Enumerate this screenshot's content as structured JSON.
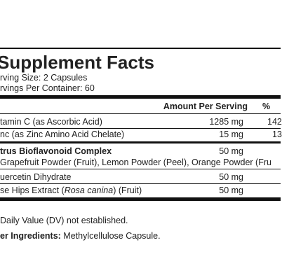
{
  "label": {
    "title": "Supplement Facts",
    "serving_size": "rving Size: 2 Capsules",
    "servings_per_container": "rvings Per Container: 60",
    "header": {
      "amount": "Amount Per Serving",
      "dv": "%"
    },
    "rows": [
      {
        "name": "tamin C (as Ascorbic Acid)",
        "amount": "1285 mg",
        "dv": "142"
      },
      {
        "name": "nc (as Zinc Amino Acid Chelate)",
        "amount": "15 mg",
        "dv": "13"
      },
      {
        "name": "trus Bioflavonoid Complex",
        "amount": "50 mg",
        "detail": "Grapefruit Powder (Fruit), Lemon Powder (Peel), Orange Powder (Fru"
      },
      {
        "name": "uercetin Dihydrate",
        "amount": "50 mg"
      },
      {
        "name_start": "se Hips Extract (",
        "name_italic": "Rosa canina",
        "name_end": ") (Fruit)",
        "amount": "50 mg"
      }
    ],
    "footnote": "Daily Value (DV) not established.",
    "other_ingredients": {
      "label": "er Ingredients:",
      "text": " Methylcellulose Capsule."
    }
  }
}
